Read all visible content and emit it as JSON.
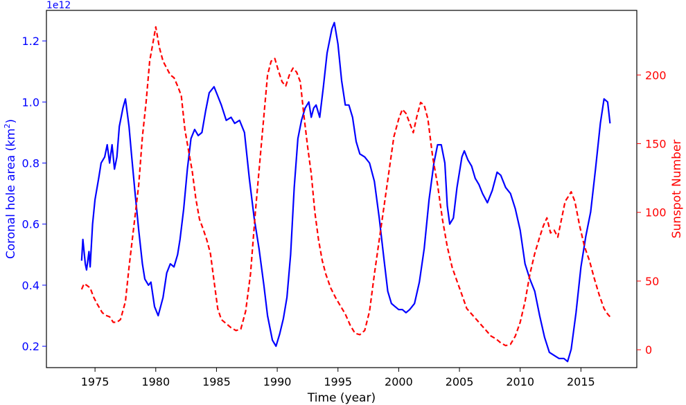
{
  "chart_data": {
    "type": "line",
    "xlabel": "Time (year)",
    "ylabel_left": "Coronal hole area (km$^2$)",
    "ylabel_left_parts": {
      "base": "Coronal hole area (km",
      "sup": "2",
      "tail": ")"
    },
    "ylabel_right": "Sunspot Number",
    "left_axis_offset_text": "1e12",
    "xlim": [
      1971,
      2019.6
    ],
    "ylim_left": [
      0.13,
      1.3
    ],
    "ylim_right": [
      -13,
      247
    ],
    "x_ticks": [
      1975,
      1980,
      1985,
      1990,
      1995,
      2000,
      2005,
      2010,
      2015
    ],
    "y_left_ticks": [
      0.2,
      0.4,
      0.6,
      0.8,
      1.0,
      1.2
    ],
    "y_right_ticks": [
      0,
      50,
      100,
      150,
      200
    ],
    "colors": {
      "left": "#0000ff",
      "right": "#ff0000",
      "axes": "#000000"
    },
    "series": [
      {
        "axis": "left",
        "style": "solid",
        "color": "#0000ff",
        "points": [
          [
            1973.9,
            0.48
          ],
          [
            1974.0,
            0.55
          ],
          [
            1974.2,
            0.47
          ],
          [
            1974.3,
            0.45
          ],
          [
            1974.5,
            0.51
          ],
          [
            1974.6,
            0.46
          ],
          [
            1974.8,
            0.6
          ],
          [
            1975.0,
            0.68
          ],
          [
            1975.3,
            0.75
          ],
          [
            1975.5,
            0.8
          ],
          [
            1975.8,
            0.82
          ],
          [
            1976.0,
            0.86
          ],
          [
            1976.2,
            0.8
          ],
          [
            1976.4,
            0.86
          ],
          [
            1976.6,
            0.78
          ],
          [
            1976.8,
            0.82
          ],
          [
            1977.0,
            0.92
          ],
          [
            1977.2,
            0.96
          ],
          [
            1977.3,
            0.98
          ],
          [
            1977.5,
            1.01
          ],
          [
            1977.8,
            0.92
          ],
          [
            1978.0,
            0.83
          ],
          [
            1978.3,
            0.7
          ],
          [
            1978.6,
            0.58
          ],
          [
            1978.9,
            0.47
          ],
          [
            1979.1,
            0.42
          ],
          [
            1979.4,
            0.4
          ],
          [
            1979.6,
            0.41
          ],
          [
            1979.9,
            0.33
          ],
          [
            1980.2,
            0.3
          ],
          [
            1980.6,
            0.36
          ],
          [
            1980.9,
            0.44
          ],
          [
            1981.2,
            0.47
          ],
          [
            1981.5,
            0.46
          ],
          [
            1981.8,
            0.5
          ],
          [
            1982.0,
            0.55
          ],
          [
            1982.3,
            0.65
          ],
          [
            1982.6,
            0.78
          ],
          [
            1982.9,
            0.88
          ],
          [
            1983.2,
            0.91
          ],
          [
            1983.5,
            0.89
          ],
          [
            1983.8,
            0.9
          ],
          [
            1984.1,
            0.97
          ],
          [
            1984.4,
            1.03
          ],
          [
            1984.8,
            1.05
          ],
          [
            1985.1,
            1.02
          ],
          [
            1985.4,
            0.99
          ],
          [
            1985.8,
            0.94
          ],
          [
            1986.2,
            0.95
          ],
          [
            1986.5,
            0.93
          ],
          [
            1986.9,
            0.94
          ],
          [
            1987.3,
            0.9
          ],
          [
            1987.7,
            0.75
          ],
          [
            1988.1,
            0.62
          ],
          [
            1988.5,
            0.52
          ],
          [
            1988.9,
            0.4
          ],
          [
            1989.2,
            0.3
          ],
          [
            1989.6,
            0.22
          ],
          [
            1989.9,
            0.2
          ],
          [
            1990.2,
            0.24
          ],
          [
            1990.5,
            0.29
          ],
          [
            1990.8,
            0.36
          ],
          [
            1991.1,
            0.5
          ],
          [
            1991.4,
            0.72
          ],
          [
            1991.7,
            0.88
          ],
          [
            1992.0,
            0.94
          ],
          [
            1992.3,
            0.98
          ],
          [
            1992.6,
            1.0
          ],
          [
            1992.8,
            0.95
          ],
          [
            1993.0,
            0.98
          ],
          [
            1993.2,
            0.99
          ],
          [
            1993.5,
            0.95
          ],
          [
            1993.8,
            1.05
          ],
          [
            1994.1,
            1.16
          ],
          [
            1994.5,
            1.24
          ],
          [
            1994.7,
            1.26
          ],
          [
            1995.0,
            1.19
          ],
          [
            1995.3,
            1.07
          ],
          [
            1995.6,
            0.99
          ],
          [
            1995.9,
            0.99
          ],
          [
            1996.2,
            0.95
          ],
          [
            1996.5,
            0.87
          ],
          [
            1996.8,
            0.83
          ],
          [
            1997.2,
            0.82
          ],
          [
            1997.6,
            0.8
          ],
          [
            1998.0,
            0.74
          ],
          [
            1998.4,
            0.62
          ],
          [
            1998.8,
            0.48
          ],
          [
            1999.1,
            0.38
          ],
          [
            1999.4,
            0.34
          ],
          [
            1999.7,
            0.33
          ],
          [
            2000.0,
            0.32
          ],
          [
            2000.3,
            0.32
          ],
          [
            2000.6,
            0.31
          ],
          [
            2000.9,
            0.32
          ],
          [
            2001.3,
            0.34
          ],
          [
            2001.7,
            0.41
          ],
          [
            2002.1,
            0.52
          ],
          [
            2002.5,
            0.68
          ],
          [
            2002.9,
            0.8
          ],
          [
            2003.2,
            0.86
          ],
          [
            2003.5,
            0.86
          ],
          [
            2003.8,
            0.8
          ],
          [
            2004.0,
            0.66
          ],
          [
            2004.2,
            0.6
          ],
          [
            2004.5,
            0.62
          ],
          [
            2004.8,
            0.72
          ],
          [
            2005.2,
            0.82
          ],
          [
            2005.4,
            0.84
          ],
          [
            2005.7,
            0.81
          ],
          [
            2006.0,
            0.79
          ],
          [
            2006.3,
            0.75
          ],
          [
            2006.6,
            0.73
          ],
          [
            2006.9,
            0.7
          ],
          [
            2007.3,
            0.67
          ],
          [
            2007.7,
            0.71
          ],
          [
            2008.1,
            0.77
          ],
          [
            2008.4,
            0.76
          ],
          [
            2008.8,
            0.72
          ],
          [
            2009.2,
            0.7
          ],
          [
            2009.6,
            0.65
          ],
          [
            2010.0,
            0.58
          ],
          [
            2010.4,
            0.47
          ],
          [
            2010.8,
            0.42
          ],
          [
            2011.2,
            0.38
          ],
          [
            2011.6,
            0.3
          ],
          [
            2012.0,
            0.23
          ],
          [
            2012.4,
            0.18
          ],
          [
            2012.8,
            0.17
          ],
          [
            2013.2,
            0.16
          ],
          [
            2013.6,
            0.16
          ],
          [
            2013.9,
            0.15
          ],
          [
            2014.2,
            0.19
          ],
          [
            2014.6,
            0.31
          ],
          [
            2015.0,
            0.46
          ],
          [
            2015.4,
            0.56
          ],
          [
            2015.8,
            0.64
          ],
          [
            2016.2,
            0.78
          ],
          [
            2016.6,
            0.93
          ],
          [
            2016.9,
            1.01
          ],
          [
            2017.2,
            1.0
          ],
          [
            2017.4,
            0.93
          ]
        ]
      },
      {
        "axis": "right",
        "style": "dashed",
        "color": "#ff0000",
        "points": [
          [
            1973.9,
            44
          ],
          [
            1974.1,
            48
          ],
          [
            1974.3,
            47
          ],
          [
            1974.6,
            45
          ],
          [
            1974.9,
            38
          ],
          [
            1975.2,
            33
          ],
          [
            1975.6,
            27
          ],
          [
            1975.9,
            25
          ],
          [
            1976.2,
            24
          ],
          [
            1976.5,
            20
          ],
          [
            1976.8,
            20
          ],
          [
            1977.1,
            22
          ],
          [
            1977.5,
            35
          ],
          [
            1977.8,
            60
          ],
          [
            1978.2,
            90
          ],
          [
            1978.6,
            120
          ],
          [
            1978.9,
            155
          ],
          [
            1979.2,
            180
          ],
          [
            1979.5,
            210
          ],
          [
            1979.8,
            225
          ],
          [
            1980.0,
            235
          ],
          [
            1980.3,
            220
          ],
          [
            1980.6,
            210
          ],
          [
            1980.9,
            205
          ],
          [
            1981.2,
            200
          ],
          [
            1981.5,
            198
          ],
          [
            1981.8,
            192
          ],
          [
            1982.1,
            185
          ],
          [
            1982.4,
            160
          ],
          [
            1982.7,
            145
          ],
          [
            1983.0,
            130
          ],
          [
            1983.3,
            110
          ],
          [
            1983.6,
            95
          ],
          [
            1983.9,
            88
          ],
          [
            1984.2,
            80
          ],
          [
            1984.5,
            70
          ],
          [
            1984.8,
            50
          ],
          [
            1985.1,
            30
          ],
          [
            1985.4,
            22
          ],
          [
            1985.8,
            19
          ],
          [
            1986.2,
            16
          ],
          [
            1986.6,
            14
          ],
          [
            1987.0,
            15
          ],
          [
            1987.4,
            28
          ],
          [
            1987.8,
            55
          ],
          [
            1988.2,
            100
          ],
          [
            1988.6,
            140
          ],
          [
            1988.9,
            170
          ],
          [
            1989.2,
            200
          ],
          [
            1989.5,
            210
          ],
          [
            1989.8,
            212
          ],
          [
            1990.1,
            203
          ],
          [
            1990.4,
            195
          ],
          [
            1990.7,
            192
          ],
          [
            1991.0,
            200
          ],
          [
            1991.3,
            205
          ],
          [
            1991.6,
            202
          ],
          [
            1991.9,
            195
          ],
          [
            1992.2,
            170
          ],
          [
            1992.5,
            148
          ],
          [
            1992.8,
            128
          ],
          [
            1993.1,
            100
          ],
          [
            1993.4,
            80
          ],
          [
            1993.7,
            65
          ],
          [
            1994.0,
            55
          ],
          [
            1994.4,
            45
          ],
          [
            1994.8,
            38
          ],
          [
            1995.2,
            32
          ],
          [
            1995.6,
            26
          ],
          [
            1996.0,
            18
          ],
          [
            1996.4,
            12
          ],
          [
            1996.8,
            11
          ],
          [
            1997.2,
            14
          ],
          [
            1997.6,
            28
          ],
          [
            1998.0,
            55
          ],
          [
            1998.4,
            80
          ],
          [
            1998.8,
            105
          ],
          [
            1999.2,
            130
          ],
          [
            1999.6,
            155
          ],
          [
            2000.0,
            168
          ],
          [
            2000.3,
            175
          ],
          [
            2000.6,
            172
          ],
          [
            2000.9,
            165
          ],
          [
            2001.2,
            158
          ],
          [
            2001.5,
            170
          ],
          [
            2001.8,
            180
          ],
          [
            2002.1,
            178
          ],
          [
            2002.4,
            168
          ],
          [
            2002.8,
            140
          ],
          [
            2003.2,
            120
          ],
          [
            2003.6,
            95
          ],
          [
            2004.0,
            75
          ],
          [
            2004.4,
            60
          ],
          [
            2004.8,
            50
          ],
          [
            2005.2,
            40
          ],
          [
            2005.6,
            30
          ],
          [
            2006.0,
            26
          ],
          [
            2006.4,
            22
          ],
          [
            2006.8,
            18
          ],
          [
            2007.2,
            14
          ],
          [
            2007.6,
            10
          ],
          [
            2008.0,
            8
          ],
          [
            2008.4,
            5
          ],
          [
            2008.8,
            3
          ],
          [
            2009.2,
            4
          ],
          [
            2009.6,
            10
          ],
          [
            2010.0,
            20
          ],
          [
            2010.4,
            35
          ],
          [
            2010.8,
            55
          ],
          [
            2011.2,
            70
          ],
          [
            2011.6,
            82
          ],
          [
            2011.9,
            90
          ],
          [
            2012.2,
            96
          ],
          [
            2012.5,
            85
          ],
          [
            2012.8,
            87
          ],
          [
            2013.1,
            82
          ],
          [
            2013.4,
            95
          ],
          [
            2013.7,
            108
          ],
          [
            2014.0,
            112
          ],
          [
            2014.2,
            115
          ],
          [
            2014.5,
            108
          ],
          [
            2014.9,
            90
          ],
          [
            2015.3,
            75
          ],
          [
            2015.7,
            65
          ],
          [
            2016.1,
            52
          ],
          [
            2016.5,
            40
          ],
          [
            2016.9,
            30
          ],
          [
            2017.2,
            26
          ],
          [
            2017.4,
            24
          ]
        ]
      }
    ]
  }
}
